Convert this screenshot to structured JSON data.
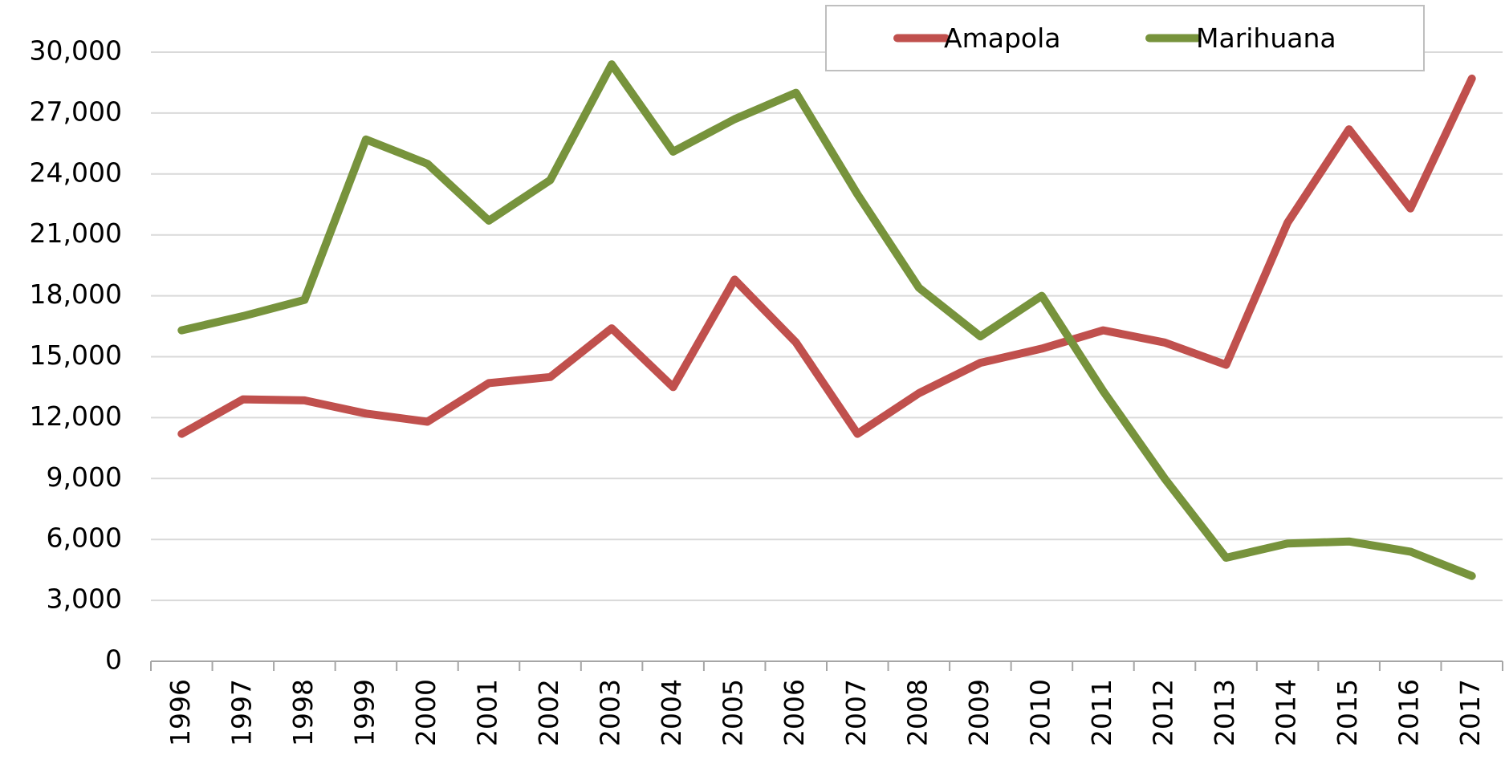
{
  "chart_data": {
    "type": "line",
    "categories": [
      "1996",
      "1997",
      "1998",
      "1999",
      "2000",
      "2001",
      "2002",
      "2003",
      "2004",
      "2005",
      "2006",
      "2007",
      "2008",
      "2009",
      "2010",
      "2011",
      "2012",
      "2013",
      "2014",
      "2015",
      "2016",
      "2017"
    ],
    "series": [
      {
        "name": "Amapola",
        "color": "#c0504d",
        "values": [
          11200,
          12900,
          12850,
          12200,
          11800,
          13700,
          14000,
          16400,
          13500,
          18800,
          15700,
          11200,
          13200,
          14700,
          15400,
          16300,
          15700,
          14600,
          21600,
          26200,
          22300,
          28700
        ]
      },
      {
        "name": "Marihuana",
        "color": "#77933c",
        "values": [
          16300,
          17000,
          17800,
          25700,
          24500,
          21700,
          23700,
          29400,
          25100,
          26700,
          28000,
          23000,
          18400,
          16000,
          18000,
          13300,
          9000,
          5100,
          5800,
          5900,
          5400,
          4200
        ]
      }
    ],
    "ylim": [
      0,
      30000
    ],
    "yticks": [
      0,
      {
        "value": 3000,
        "label": "3,000"
      },
      {
        "value": 6000,
        "label": "6,000"
      },
      {
        "value": 9000,
        "label": "9,000"
      },
      {
        "value": 12000,
        "label": "12,000"
      },
      {
        "value": 15000,
        "label": "15,000"
      },
      {
        "value": 18000,
        "label": "18,000"
      },
      {
        "value": 21000,
        "label": "21,000"
      },
      {
        "value": 24000,
        "label": "24,000"
      },
      {
        "value": 27000,
        "label": "27,000"
      },
      {
        "value": 30000,
        "label": "30,000"
      }
    ],
    "grid": true,
    "legend": "top-right"
  }
}
